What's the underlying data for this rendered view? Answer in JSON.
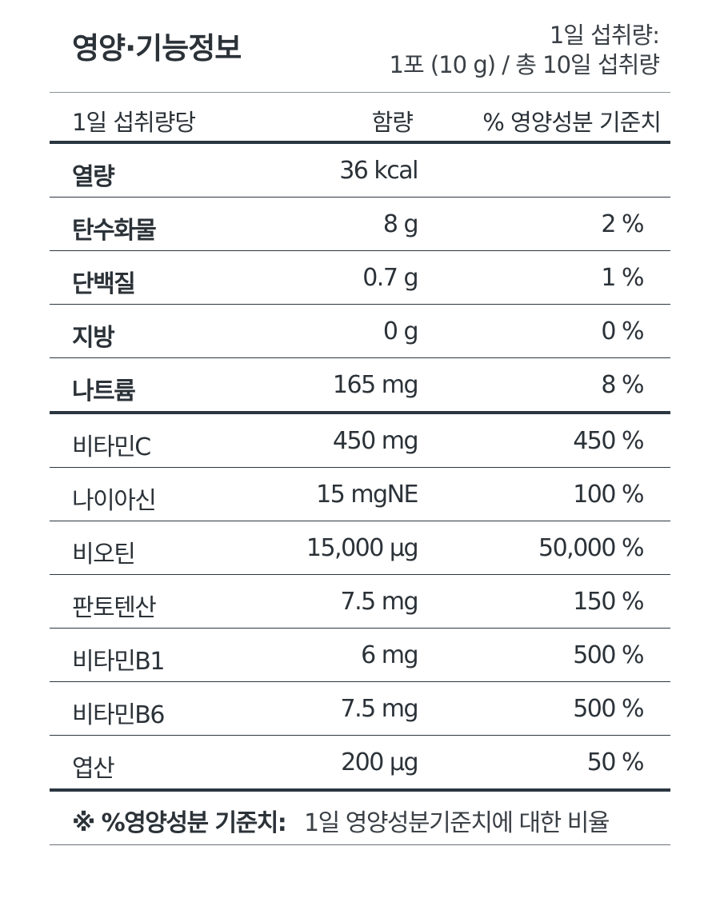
{
  "header": {
    "title": "영양·기능정보",
    "serving_line1": "1일 섭취량:",
    "serving_line2": "1포 (10 g) / 총 10일 섭취량"
  },
  "columns": {
    "item": "1일 섭취량당",
    "amount": "함량",
    "daily_value": "% 영양성분 기준치"
  },
  "rows": [
    {
      "name": "열량",
      "amount": "36 kcal",
      "dv": ""
    },
    {
      "name": "탄수화물",
      "amount": "8 g",
      "dv": "2 %"
    },
    {
      "name": "단백질",
      "amount": "0.7 g",
      "dv": "1 %"
    },
    {
      "name": "지방",
      "amount": "0 g",
      "dv": "0 %"
    },
    {
      "name": "나트륨",
      "amount": "165 mg",
      "dv": "8 %"
    },
    {
      "name": "비타민C",
      "amount": "450 mg",
      "dv": "450 %"
    },
    {
      "name": "나이아신",
      "amount": "15 mgNE",
      "dv": "100 %"
    },
    {
      "name": "비오틴",
      "amount": "15,000 μg",
      "dv": "50,000 %"
    },
    {
      "name": "판토텐산",
      "amount": "7.5 mg",
      "dv": "150 %"
    },
    {
      "name": "비타민B1",
      "amount": "6 mg",
      "dv": "500 %"
    },
    {
      "name": "비타민B6",
      "amount": "7.5 mg",
      "dv": "500 %"
    },
    {
      "name": "엽산",
      "amount": "200 μg",
      "dv": "50 %"
    }
  ],
  "footnote": {
    "label": "※ %영양성분 기준치:",
    "text": "1일 영양성분기준치에 대한 비율"
  }
}
